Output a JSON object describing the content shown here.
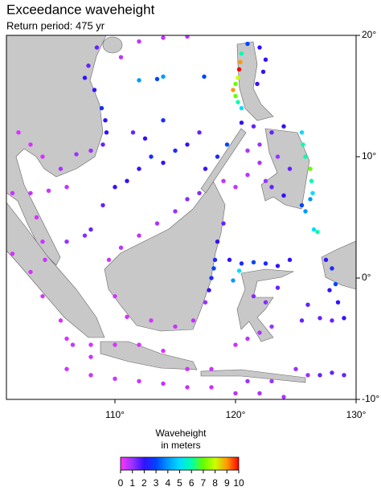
{
  "map": {
    "title": "Exceedance waveheight",
    "subtitle": "Return period: 475 yr",
    "xlim": [
      101,
      130
    ],
    "ylim": [
      -10,
      20
    ],
    "xticks": [
      {
        "value": 110,
        "label": "110°"
      },
      {
        "value": 120,
        "label": "120°"
      },
      {
        "value": 130,
        "label": "130°"
      }
    ],
    "yticks": [
      {
        "value": 20,
        "label": "20°"
      },
      {
        "value": 10,
        "label": "10°"
      },
      {
        "value": 0,
        "label": "0°"
      },
      {
        "value": -10,
        "label": "-10°"
      }
    ],
    "colorbar": {
      "title": "Waveheight",
      "subtitle": "in meters",
      "range": [
        0,
        10
      ],
      "ticks": [
        0,
        1,
        2,
        3,
        4,
        5,
        6,
        7,
        8,
        9,
        10
      ],
      "colors": [
        "#ff33ff",
        "#9933ff",
        "#3311ff",
        "#0044ff",
        "#0099ff",
        "#00ddff",
        "#00ffaa",
        "#66ff00",
        "#ccff00",
        "#ff9900",
        "#ff0000"
      ]
    },
    "points": [
      [
        108.5,
        19,
        1.5
      ],
      [
        107.8,
        17.5,
        1.5
      ],
      [
        107.5,
        16.5,
        2
      ],
      [
        108.3,
        15.5,
        2
      ],
      [
        108.9,
        14,
        2.5
      ],
      [
        109.2,
        13,
        2
      ],
      [
        109.3,
        12,
        2
      ],
      [
        109,
        11,
        1.5
      ],
      [
        108,
        10.5,
        1
      ],
      [
        106.8,
        10.2,
        1
      ],
      [
        105.5,
        9,
        0.8
      ],
      [
        110.5,
        18.2,
        0.6
      ],
      [
        112,
        19.5,
        0.6
      ],
      [
        114,
        19.8,
        0.6
      ],
      [
        116,
        19.9,
        0.6
      ],
      [
        104,
        10,
        0.4
      ],
      [
        103,
        11,
        0.4
      ],
      [
        102,
        12,
        0.4
      ],
      [
        101.5,
        7,
        0.5
      ],
      [
        103,
        7,
        0.5
      ],
      [
        104.5,
        7.2,
        0.5
      ],
      [
        106,
        7.5,
        0.6
      ],
      [
        103.5,
        5,
        0.5
      ],
      [
        104,
        3,
        0.5
      ],
      [
        104.2,
        1.5,
        0.5
      ],
      [
        101.5,
        2,
        0.4
      ],
      [
        103,
        0.5,
        0.4
      ],
      [
        104,
        -1.5,
        0.4
      ],
      [
        105.5,
        -3.5,
        0.4
      ],
      [
        106.5,
        -5.5,
        0.5
      ],
      [
        108,
        -6.5,
        0.5
      ],
      [
        108,
        4,
        1.5
      ],
      [
        107.5,
        3.5,
        1.2
      ],
      [
        106,
        3,
        1
      ],
      [
        109,
        6,
        1.5
      ],
      [
        110,
        7.5,
        2
      ],
      [
        111,
        8,
        2
      ],
      [
        112,
        9,
        2
      ],
      [
        113,
        10,
        2.5
      ],
      [
        114,
        9.5,
        2
      ],
      [
        115,
        10.5,
        2.5
      ],
      [
        116,
        11,
        2
      ],
      [
        112.5,
        11.5,
        2
      ],
      [
        111.5,
        12,
        1.5
      ],
      [
        114,
        13,
        2.5
      ],
      [
        117,
        12,
        1.5
      ],
      [
        109.5,
        1.5,
        0.5
      ],
      [
        110.5,
        2.5,
        0.6
      ],
      [
        112,
        3.5,
        0.6
      ],
      [
        113.5,
        4.5,
        0.8
      ],
      [
        115,
        5.5,
        1
      ],
      [
        116,
        6.5,
        1.2
      ],
      [
        117,
        7,
        1.2
      ],
      [
        110,
        -1.5,
        0.4
      ],
      [
        111,
        -3.2,
        0.4
      ],
      [
        113,
        -3.5,
        0.4
      ],
      [
        115,
        -4,
        0.5
      ],
      [
        116.5,
        -3.5,
        0.6
      ],
      [
        117.5,
        -2,
        1
      ],
      [
        117.8,
        -1,
        2
      ],
      [
        118,
        0,
        2.5
      ],
      [
        118.2,
        0.8,
        3
      ],
      [
        118.3,
        1.5,
        2.5
      ],
      [
        118.5,
        3,
        2
      ],
      [
        119,
        4.5,
        1.5
      ],
      [
        106,
        -7.5,
        0.5
      ],
      [
        108,
        -8,
        0.5
      ],
      [
        110,
        -8.3,
        0.5
      ],
      [
        112,
        -8.5,
        0.5
      ],
      [
        114,
        -8.7,
        0.6
      ],
      [
        116,
        -9,
        0.6
      ],
      [
        118,
        -9,
        0.6
      ],
      [
        120,
        -9.5,
        0.7
      ],
      [
        122,
        -9.5,
        0.8
      ],
      [
        124,
        -9.8,
        0.8
      ],
      [
        106,
        -5,
        0.4
      ],
      [
        108,
        -5.5,
        0.4
      ],
      [
        110,
        -5.5,
        0.4
      ],
      [
        112,
        -5.5,
        0.4
      ],
      [
        114,
        -6,
        0.4
      ],
      [
        116,
        -7.5,
        0.5
      ],
      [
        118,
        -7.5,
        0.5
      ],
      [
        117.5,
        9,
        2
      ],
      [
        118.5,
        10,
        2.5
      ],
      [
        119.3,
        11,
        3
      ],
      [
        119,
        8,
        0.6
      ],
      [
        120,
        7.5,
        0.6
      ],
      [
        121,
        8.5,
        0.7
      ],
      [
        122,
        9.5,
        0.8
      ],
      [
        121,
        10.5,
        0.8
      ],
      [
        119.5,
        1.5,
        2
      ],
      [
        120.5,
        1.2,
        2.5
      ],
      [
        121.5,
        1.3,
        3
      ],
      [
        122.5,
        1.2,
        2.5
      ],
      [
        123.5,
        1,
        2
      ],
      [
        124.5,
        1.5,
        2
      ],
      [
        120.3,
        0.6,
        5
      ],
      [
        119.8,
        -0.2,
        4
      ],
      [
        120,
        -5.5,
        0.5
      ],
      [
        121,
        -5,
        0.6
      ],
      [
        122,
        -4.5,
        0.8
      ],
      [
        123,
        -4,
        1
      ],
      [
        122.5,
        -2,
        1.2
      ],
      [
        121.5,
        -1.5,
        1.2
      ],
      [
        123.5,
        -0.8,
        1.5
      ],
      [
        120.5,
        18.5,
        6
      ],
      [
        120.4,
        17.8,
        9
      ],
      [
        120.3,
        17.2,
        10
      ],
      [
        120.2,
        16.5,
        8
      ],
      [
        120,
        16,
        7
      ],
      [
        119.8,
        15.5,
        9
      ],
      [
        120,
        15,
        7
      ],
      [
        120.2,
        14.5,
        6
      ],
      [
        120.5,
        14,
        5
      ],
      [
        121,
        19.3,
        3
      ],
      [
        122,
        19,
        2
      ],
      [
        122.5,
        18,
        2
      ],
      [
        122.3,
        17,
        2
      ],
      [
        121.8,
        16,
        2
      ],
      [
        125.5,
        12,
        5
      ],
      [
        125.6,
        11,
        6
      ],
      [
        125.8,
        10,
        6
      ],
      [
        126.2,
        9,
        7
      ],
      [
        126.3,
        8,
        6
      ],
      [
        126.4,
        7,
        5
      ],
      [
        126.2,
        6.5,
        4
      ],
      [
        125.5,
        6,
        3
      ],
      [
        125.8,
        5.5,
        4
      ],
      [
        126.5,
        4,
        5
      ],
      [
        126.8,
        3.8,
        6
      ],
      [
        122,
        11,
        1
      ],
      [
        123,
        12,
        1.5
      ],
      [
        124,
        12.5,
        2
      ],
      [
        123.5,
        10,
        1
      ],
      [
        124.5,
        9,
        1.5
      ],
      [
        122.5,
        8,
        1
      ],
      [
        123,
        7.5,
        1.5
      ],
      [
        124,
        6.8,
        2
      ],
      [
        121.5,
        12.5,
        1.5
      ],
      [
        120.5,
        12.8,
        2
      ],
      [
        114,
        16.6,
        4
      ],
      [
        113.5,
        16.4,
        3
      ],
      [
        112,
        16.3,
        4
      ],
      [
        117.4,
        16.6,
        3
      ],
      [
        127.5,
        1.5,
        2
      ],
      [
        128,
        0.8,
        2.5
      ],
      [
        128.3,
        -0.5,
        3
      ],
      [
        127.8,
        -1,
        2
      ],
      [
        128.5,
        -2,
        2
      ],
      [
        129,
        -3.3,
        2
      ],
      [
        128,
        -3.5,
        1.5
      ],
      [
        127,
        -3.3,
        1.5
      ],
      [
        126,
        -2.2,
        1.5
      ],
      [
        125.5,
        -3.5,
        1.5
      ],
      [
        125,
        -7.5,
        1
      ],
      [
        126,
        -8,
        1
      ],
      [
        127,
        -8,
        1.5
      ],
      [
        128,
        -7.8,
        1.5
      ],
      [
        129,
        -8,
        1.5
      ],
      [
        121,
        -8.5,
        1
      ],
      [
        123,
        -8.5,
        1
      ]
    ]
  }
}
